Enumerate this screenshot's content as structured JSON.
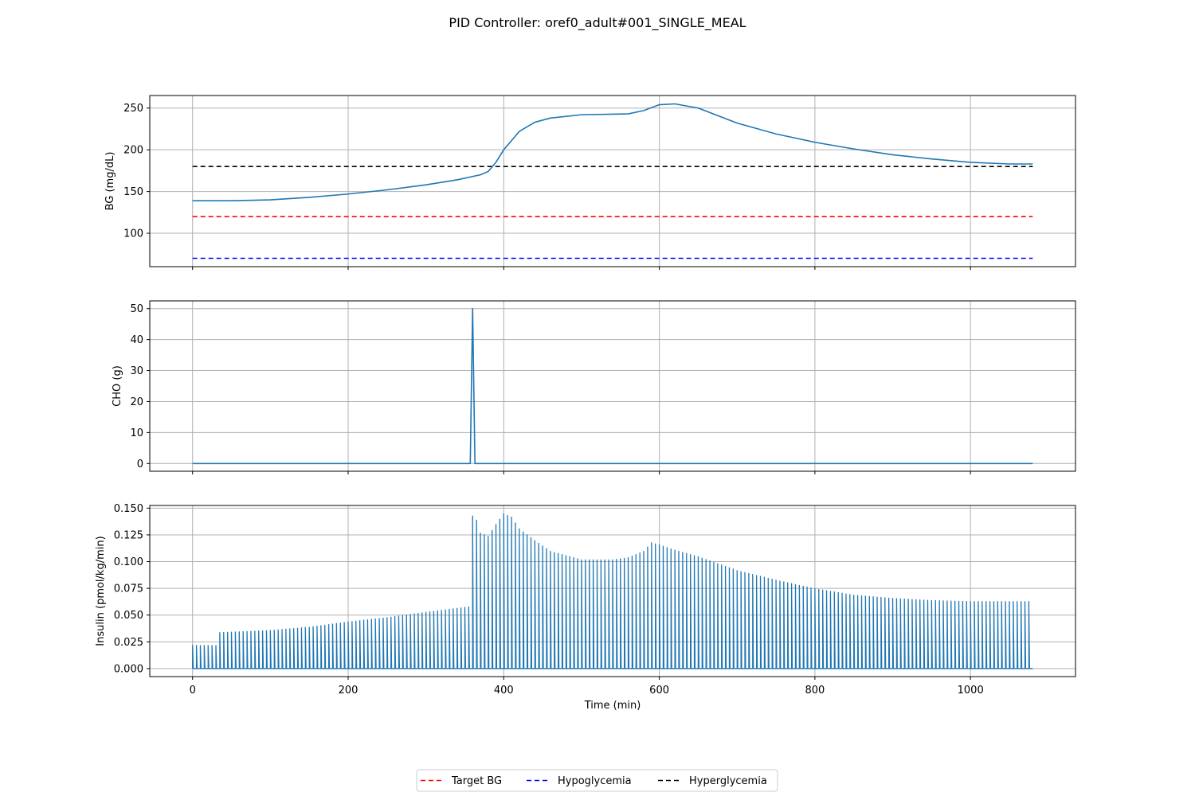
{
  "figure": {
    "title": "PID Controller: oref0_adult#001_SINGLE_MEAL",
    "xlabel": "Time (min)"
  },
  "legend": {
    "placement": "bottom-center",
    "entries": [
      {
        "label": "Target BG",
        "color": "#ff0000",
        "style": "dashed"
      },
      {
        "label": "Hypoglycemia",
        "color": "#0000ff",
        "style": "dashed"
      },
      {
        "label": "Hyperglycemia",
        "color": "#000000",
        "style": "dashed"
      }
    ]
  },
  "colors": {
    "series": "#1f77b4",
    "grid": "#b0b0b0"
  },
  "chart_data": [
    {
      "type": "line",
      "ylabel": "BG (mg/dL)",
      "xlim": [
        -55,
        1135
      ],
      "ylim": [
        60,
        265
      ],
      "xticks": [
        0,
        200,
        400,
        600,
        800,
        1000
      ],
      "yticks": [
        100,
        150,
        200,
        250
      ],
      "grid": true,
      "series": [
        {
          "values_x": [
            0,
            50,
            100,
            150,
            200,
            250,
            300,
            340,
            370,
            380,
            390,
            400,
            420,
            440,
            460,
            500,
            560,
            580,
            600,
            620,
            650,
            700,
            750,
            800,
            850,
            900,
            950,
            1000,
            1050,
            1080
          ],
          "values_y": [
            139,
            139,
            140,
            143,
            147,
            152,
            158,
            164,
            170,
            174,
            185,
            200,
            222,
            233,
            238,
            242,
            243,
            247,
            254,
            255,
            250,
            232,
            219,
            209,
            201,
            194,
            189,
            185,
            183,
            183
          ]
        }
      ],
      "hlines": [
        {
          "label": "Target BG",
          "y": 120,
          "color": "#ff0000"
        },
        {
          "label": "Hypoglycemia",
          "y": 70,
          "color": "#0000ff"
        },
        {
          "label": "Hyperglycemia",
          "y": 180,
          "color": "#000000"
        }
      ]
    },
    {
      "type": "line",
      "ylabel": "CHO (g)",
      "xlim": [
        -55,
        1135
      ],
      "ylim": [
        -2.5,
        52.5
      ],
      "xticks": [
        0,
        200,
        400,
        600,
        800,
        1000
      ],
      "yticks": [
        0,
        10,
        20,
        30,
        40,
        50
      ],
      "grid": true,
      "series": [
        {
          "values_x": [
            0,
            357,
            360,
            363,
            1080
          ],
          "values_y": [
            0,
            0,
            50,
            0,
            0
          ]
        }
      ]
    },
    {
      "type": "line",
      "ylabel": "Insulin (pmol/kg/min)",
      "xlim": [
        -55,
        1135
      ],
      "ylim": [
        -0.0075,
        0.1525
      ],
      "xticks": [
        0,
        200,
        400,
        600,
        800,
        1000
      ],
      "yticks": [
        0.0,
        0.025,
        0.05,
        0.075,
        0.1,
        0.125,
        0.15
      ],
      "ytick_labels": [
        "0.000",
        "0.025",
        "0.050",
        "0.075",
        "0.100",
        "0.125",
        "0.150"
      ],
      "grid": true,
      "series": [
        {
          "pulse_interval_min": 5,
          "envelope_x": [
            0,
            30,
            35,
            100,
            150,
            200,
            250,
            300,
            355,
            360,
            365,
            370,
            380,
            390,
            400,
            410,
            420,
            440,
            460,
            500,
            540,
            560,
            580,
            590,
            600,
            620,
            650,
            700,
            750,
            800,
            850,
            900,
            950,
            1000,
            1075
          ],
          "envelope_y": [
            0.022,
            0.022,
            0.034,
            0.036,
            0.039,
            0.044,
            0.048,
            0.053,
            0.058,
            0.143,
            0.139,
            0.127,
            0.124,
            0.135,
            0.145,
            0.142,
            0.131,
            0.12,
            0.11,
            0.102,
            0.102,
            0.104,
            0.11,
            0.118,
            0.116,
            0.111,
            0.105,
            0.092,
            0.083,
            0.075,
            0.069,
            0.066,
            0.064,
            0.063,
            0.063
          ]
        }
      ]
    }
  ]
}
